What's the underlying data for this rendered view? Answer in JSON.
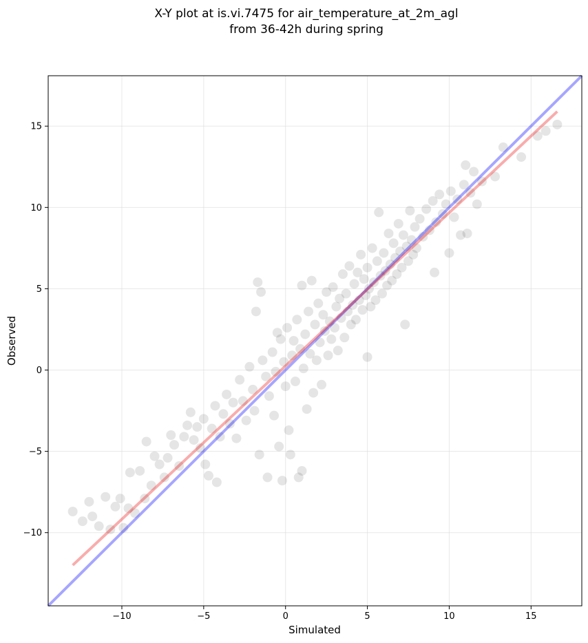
{
  "chart_data": {
    "type": "scatter",
    "title_lines": [
      "X-Y plot at is.vi.7475 for air_temperature_at_2m_agl",
      "from 36-42h during spring"
    ],
    "xlabel": "Simulated",
    "ylabel": "Observed",
    "xlim": [
      -14.5,
      18.1
    ],
    "ylim": [
      -14.5,
      18.1
    ],
    "xticks": [
      -10,
      -5,
      0,
      5,
      10,
      15
    ],
    "yticks": [
      -10,
      -5,
      0,
      5,
      10,
      15
    ],
    "xtick_labels": [
      "−10",
      "−5",
      "0",
      "5",
      "10",
      "15"
    ],
    "ytick_labels": [
      "−10",
      "−5",
      "0",
      "5",
      "10",
      "15"
    ],
    "grid": true,
    "point_color": "#000000",
    "one_to_one_line": {
      "color": "#0000ff",
      "from": [
        -14.5,
        -14.5
      ],
      "to": [
        18.1,
        18.1
      ]
    },
    "regression_line": {
      "color": "#ee1111",
      "from": [
        -13,
        -12
      ],
      "to": [
        16.6,
        15.9
      ]
    },
    "points": [
      [
        -13.0,
        -8.7
      ],
      [
        -12.4,
        -9.3
      ],
      [
        -12.0,
        -8.1
      ],
      [
        -11.8,
        -9.0
      ],
      [
        -11.4,
        -9.6
      ],
      [
        -11.0,
        -7.8
      ],
      [
        -10.7,
        -9.8
      ],
      [
        -10.4,
        -8.4
      ],
      [
        -10.1,
        -7.9
      ],
      [
        -9.9,
        -9.7
      ],
      [
        -9.6,
        -8.5
      ],
      [
        -9.5,
        -6.3
      ],
      [
        -9.2,
        -8.8
      ],
      [
        -8.9,
        -6.2
      ],
      [
        -8.6,
        -7.9
      ],
      [
        -8.5,
        -4.4
      ],
      [
        -8.2,
        -7.1
      ],
      [
        -8.0,
        -5.3
      ],
      [
        -7.7,
        -5.8
      ],
      [
        -7.4,
        -6.6
      ],
      [
        -7.2,
        -5.4
      ],
      [
        -7.0,
        -4.0
      ],
      [
        -6.8,
        -4.6
      ],
      [
        -6.5,
        -5.9
      ],
      [
        -6.2,
        -4.1
      ],
      [
        -6.0,
        -3.4
      ],
      [
        -5.8,
        -2.6
      ],
      [
        -5.6,
        -4.3
      ],
      [
        -5.4,
        -3.5
      ],
      [
        -5.2,
        -4.8
      ],
      [
        -5.0,
        -3.0
      ],
      [
        -4.9,
        -5.8
      ],
      [
        -4.7,
        -6.5
      ],
      [
        -4.5,
        -3.6
      ],
      [
        -4.3,
        -2.2
      ],
      [
        -4.2,
        -6.9
      ],
      [
        -4.0,
        -4.1
      ],
      [
        -3.8,
        -2.7
      ],
      [
        -3.6,
        -1.5
      ],
      [
        -3.4,
        -3.3
      ],
      [
        -3.2,
        -2.0
      ],
      [
        -3.0,
        -4.2
      ],
      [
        -2.8,
        -0.6
      ],
      [
        -2.6,
        -1.9
      ],
      [
        -2.4,
        -3.1
      ],
      [
        -2.2,
        0.2
      ],
      [
        -2.0,
        -1.2
      ],
      [
        -1.9,
        -2.5
      ],
      [
        -1.8,
        3.6
      ],
      [
        -1.7,
        5.4
      ],
      [
        -1.6,
        -5.2
      ],
      [
        -1.5,
        4.8
      ],
      [
        -1.4,
        0.6
      ],
      [
        -1.2,
        -0.4
      ],
      [
        -1.1,
        -6.6
      ],
      [
        -1.0,
        -1.6
      ],
      [
        -0.8,
        1.1
      ],
      [
        -0.7,
        -2.8
      ],
      [
        -0.6,
        -0.1
      ],
      [
        -0.5,
        2.3
      ],
      [
        -0.4,
        -4.7
      ],
      [
        -0.3,
        1.9
      ],
      [
        -0.2,
        -6.8
      ],
      [
        -0.1,
        0.5
      ],
      [
        0.0,
        -1.0
      ],
      [
        0.1,
        2.6
      ],
      [
        0.2,
        -3.7
      ],
      [
        0.3,
        -5.2
      ],
      [
        0.4,
        0.9
      ],
      [
        0.5,
        1.8
      ],
      [
        0.6,
        -0.7
      ],
      [
        0.7,
        3.1
      ],
      [
        0.8,
        -6.6
      ],
      [
        0.9,
        1.3
      ],
      [
        1.0,
        -6.2
      ],
      [
        1.0,
        5.2
      ],
      [
        1.1,
        0.1
      ],
      [
        1.2,
        2.2
      ],
      [
        1.3,
        -2.4
      ],
      [
        1.4,
        3.6
      ],
      [
        1.5,
        1.0
      ],
      [
        1.6,
        5.5
      ],
      [
        1.7,
        -1.4
      ],
      [
        1.8,
        2.8
      ],
      [
        1.9,
        0.6
      ],
      [
        2.0,
        4.1
      ],
      [
        2.1,
        1.7
      ],
      [
        2.2,
        -0.9
      ],
      [
        2.3,
        3.4
      ],
      [
        2.4,
        2.4
      ],
      [
        2.5,
        4.8
      ],
      [
        2.6,
        0.9
      ],
      [
        2.7,
        3.0
      ],
      [
        2.8,
        1.9
      ],
      [
        2.9,
        5.1
      ],
      [
        3.0,
        2.6
      ],
      [
        3.1,
        3.9
      ],
      [
        3.2,
        1.2
      ],
      [
        3.3,
        4.4
      ],
      [
        3.4,
        3.2
      ],
      [
        3.5,
        5.9
      ],
      [
        3.6,
        2.0
      ],
      [
        3.7,
        4.7
      ],
      [
        3.8,
        3.6
      ],
      [
        3.9,
        6.4
      ],
      [
        4.0,
        2.8
      ],
      [
        4.1,
        4.0
      ],
      [
        4.2,
        5.3
      ],
      [
        4.3,
        3.1
      ],
      [
        4.4,
        6.0
      ],
      [
        4.5,
        4.3
      ],
      [
        4.6,
        7.1
      ],
      [
        4.7,
        3.7
      ],
      [
        4.8,
        5.6
      ],
      [
        4.9,
        4.6
      ],
      [
        5.0,
        6.3
      ],
      [
        5.0,
        0.8
      ],
      [
        5.1,
        5.0
      ],
      [
        5.2,
        3.9
      ],
      [
        5.3,
        7.5
      ],
      [
        5.4,
        5.4
      ],
      [
        5.5,
        4.3
      ],
      [
        5.6,
        6.7
      ],
      [
        5.7,
        9.7
      ],
      [
        5.8,
        5.8
      ],
      [
        5.9,
        4.7
      ],
      [
        6.0,
        7.2
      ],
      [
        6.1,
        6.1
      ],
      [
        6.2,
        5.2
      ],
      [
        6.3,
        8.4
      ],
      [
        6.4,
        6.5
      ],
      [
        6.5,
        5.5
      ],
      [
        6.6,
        7.8
      ],
      [
        6.7,
        6.9
      ],
      [
        6.8,
        5.9
      ],
      [
        6.9,
        9.0
      ],
      [
        7.0,
        7.3
      ],
      [
        7.1,
        6.3
      ],
      [
        7.2,
        8.3
      ],
      [
        7.3,
        2.8
      ],
      [
        7.4,
        7.6
      ],
      [
        7.5,
        6.7
      ],
      [
        7.6,
        9.8
      ],
      [
        7.7,
        8.0
      ],
      [
        7.8,
        7.1
      ],
      [
        7.9,
        8.8
      ],
      [
        8.0,
        7.5
      ],
      [
        8.2,
        9.3
      ],
      [
        8.4,
        8.2
      ],
      [
        8.6,
        9.9
      ],
      [
        8.8,
        8.6
      ],
      [
        9.0,
        10.4
      ],
      [
        9.1,
        6.0
      ],
      [
        9.2,
        9.1
      ],
      [
        9.4,
        10.8
      ],
      [
        9.6,
        9.6
      ],
      [
        9.8,
        10.2
      ],
      [
        10.0,
        7.2
      ],
      [
        10.1,
        11.0
      ],
      [
        10.3,
        9.4
      ],
      [
        10.5,
        10.5
      ],
      [
        10.7,
        8.3
      ],
      [
        10.9,
        11.4
      ],
      [
        11.0,
        12.6
      ],
      [
        11.1,
        8.4
      ],
      [
        11.3,
        10.9
      ],
      [
        11.5,
        12.2
      ],
      [
        11.7,
        10.2
      ],
      [
        12.0,
        11.6
      ],
      [
        12.8,
        11.9
      ],
      [
        13.3,
        13.7
      ],
      [
        14.4,
        13.1
      ],
      [
        15.4,
        14.4
      ],
      [
        15.9,
        14.7
      ],
      [
        16.6,
        15.1
      ]
    ]
  }
}
